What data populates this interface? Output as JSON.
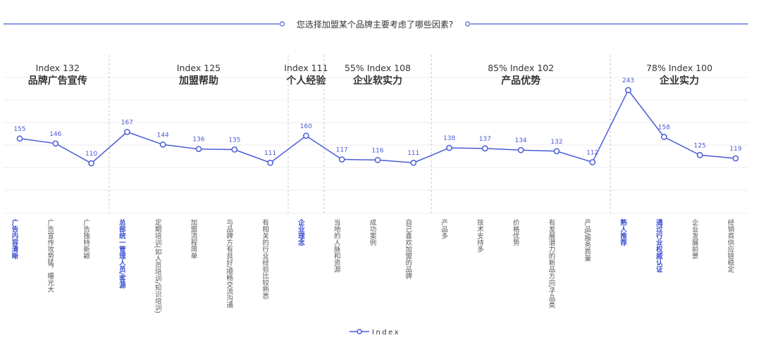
{
  "title": "您选择加盟某个品牌主要考虑了哪些因素?",
  "legend_label": "Index",
  "colors": {
    "line": "#4a5bd6",
    "text_dark": "#333333",
    "text_gray": "#555555",
    "highlight": "#3b4fd0",
    "grid": "#ececec",
    "divider": "#c8c8c8"
  },
  "chart_data": {
    "type": "line",
    "series": [
      {
        "name": "Index",
        "values": [
          155,
          146,
          110,
          167,
          144,
          136,
          135,
          111,
          160,
          117,
          116,
          111,
          138,
          137,
          134,
          132,
          112,
          243,
          158,
          125,
          119
        ]
      }
    ],
    "categories": [
      "广告内容清晰",
      "广告宣传攻势猛，曝光大",
      "广告独特新颖",
      "总部统一管理人员/客源",
      "定期培训(如人员培训/知识培训)",
      "加盟流程简单",
      "与品牌方有良好/顺畅交流沟通",
      "有相关的行业经验比较熟悉",
      "企业理念",
      "当地的人脉和资源",
      "成功案例",
      "自己喜欢加盟的品牌",
      "产品多",
      "技术支持多",
      "价格优势",
      "有发展潜力的新品方向/子品类",
      "产品/服务质量",
      "熟人推荐",
      "通过行业权威认证",
      "企业发展前景",
      "经销商供应链稳定"
    ],
    "highlighted": [
      true,
      false,
      false,
      true,
      false,
      false,
      false,
      false,
      true,
      false,
      false,
      false,
      false,
      false,
      false,
      false,
      false,
      true,
      true,
      false,
      false
    ],
    "groups": [
      {
        "line1": "Index 132",
        "name": "品牌广告宣传",
        "start": 0,
        "end": 2
      },
      {
        "line1": "Index 125",
        "name": "加盟帮助",
        "start": 3,
        "end": 7
      },
      {
        "line1": "Index 111",
        "name": "个人经验",
        "start": 8,
        "end": 8
      },
      {
        "line1": "55% Index 108",
        "name": "企业软实力",
        "start": 9,
        "end": 11
      },
      {
        "line1": "85% Index 102",
        "name": "产品优势",
        "start": 12,
        "end": 16
      },
      {
        "line1": "78% Index 100",
        "name": "企业实力",
        "start": 17,
        "end": 20
      }
    ],
    "ylim": [
      20,
      285
    ],
    "grid": true,
    "legend_position": "bottom-center"
  }
}
